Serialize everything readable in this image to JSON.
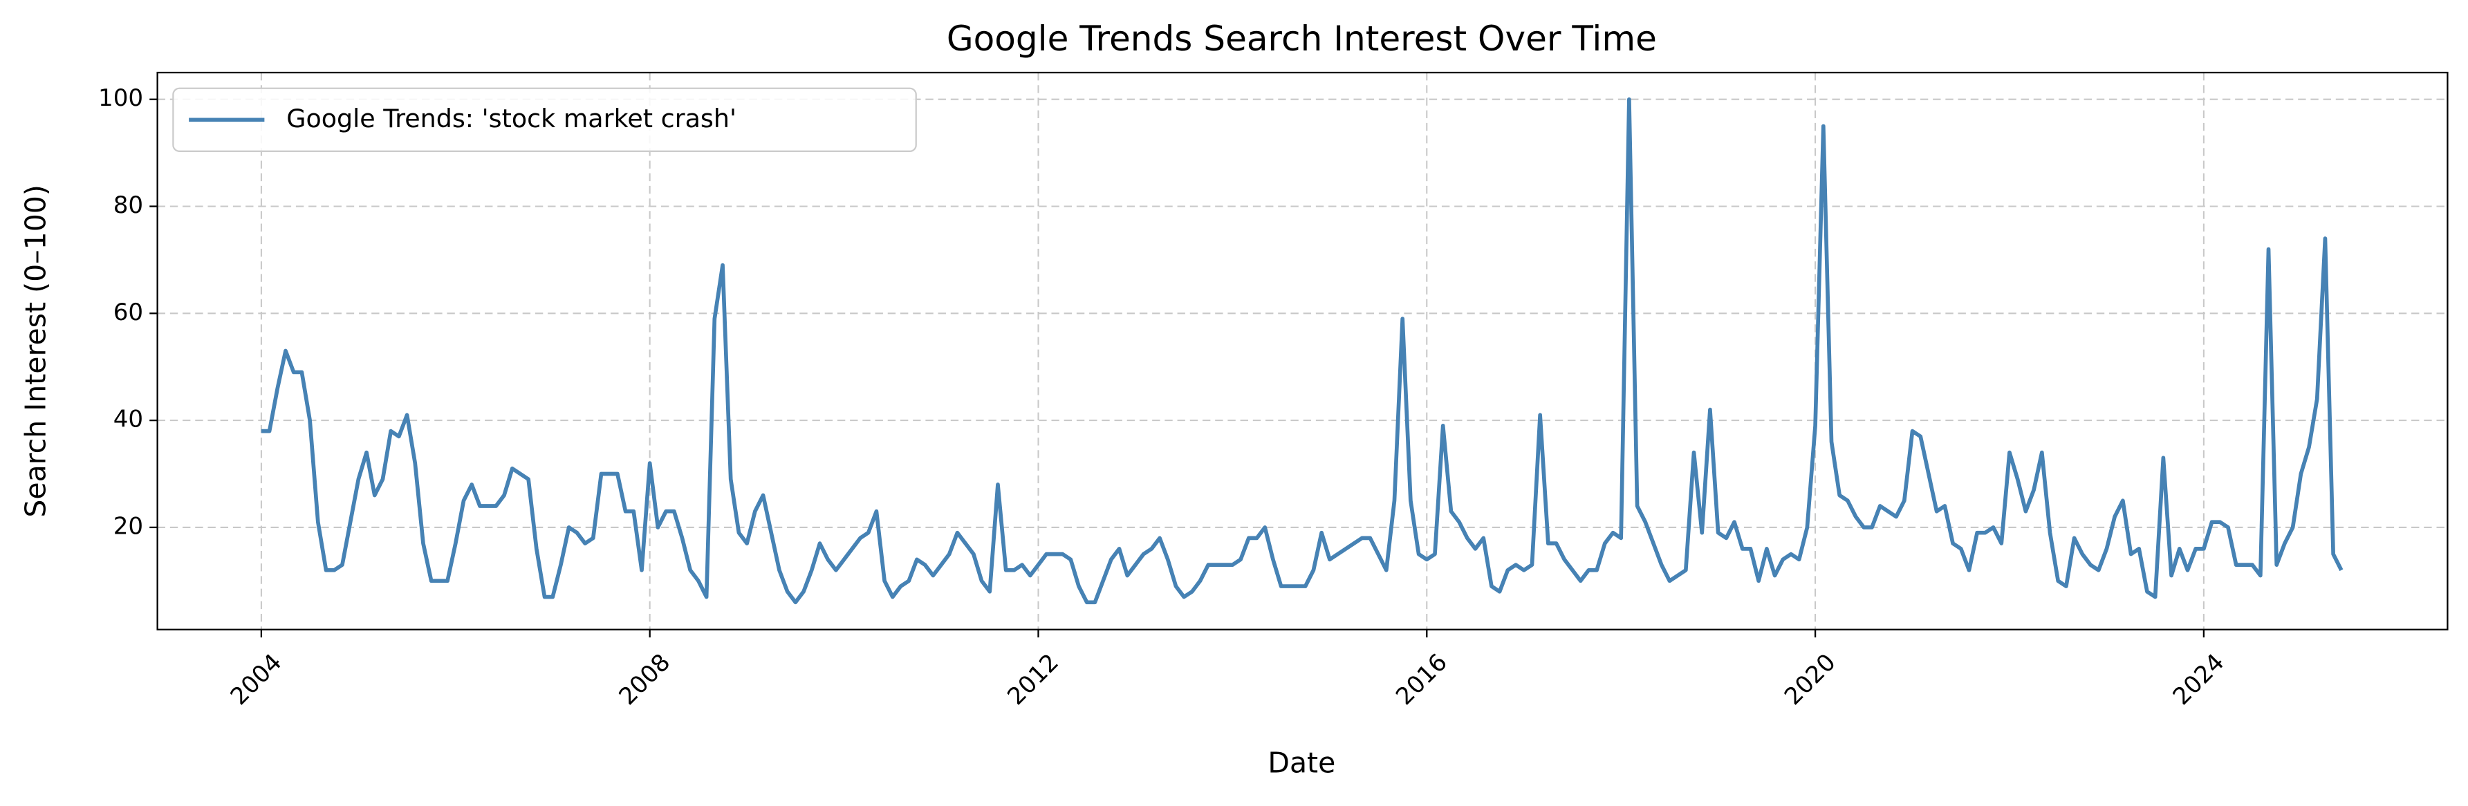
{
  "chart_data": {
    "type": "line",
    "title": "Google Trends Search Interest Over Time",
    "xlabel": "Date",
    "ylabel": "Search Interest (0–100)",
    "legend": "upper left",
    "grid": true,
    "xlim": [
      2002.93,
      2026.51
    ],
    "xticks": [
      2004,
      2008,
      2012,
      2016,
      2020,
      2024
    ],
    "ylim": [
      0.9,
      105
    ],
    "yticks": [
      20,
      40,
      60,
      80,
      100
    ],
    "x": [
      "2004-01",
      "2004-02",
      "2004-03",
      "2004-04",
      "2004-05",
      "2004-06",
      "2004-07",
      "2004-08",
      "2004-09",
      "2004-10",
      "2004-11",
      "2004-12",
      "2005-01",
      "2005-02",
      "2005-03",
      "2005-04",
      "2005-05",
      "2005-06",
      "2005-07",
      "2005-08",
      "2005-09",
      "2005-10",
      "2005-11",
      "2005-12",
      "2006-01",
      "2006-02",
      "2006-03",
      "2006-04",
      "2006-05",
      "2006-06",
      "2006-07",
      "2006-08",
      "2006-09",
      "2006-10",
      "2006-11",
      "2006-12",
      "2007-01",
      "2007-02",
      "2007-03",
      "2007-04",
      "2007-05",
      "2007-06",
      "2007-07",
      "2007-08",
      "2007-09",
      "2007-10",
      "2007-11",
      "2007-12",
      "2008-01",
      "2008-02",
      "2008-03",
      "2008-04",
      "2008-05",
      "2008-06",
      "2008-07",
      "2008-08",
      "2008-09",
      "2008-10",
      "2008-11",
      "2008-12",
      "2009-01",
      "2009-02",
      "2009-03",
      "2009-04",
      "2009-05",
      "2009-06",
      "2009-07",
      "2009-08",
      "2009-09",
      "2009-10",
      "2009-11",
      "2009-12",
      "2010-01",
      "2010-02",
      "2010-03",
      "2010-04",
      "2010-05",
      "2010-06",
      "2010-07",
      "2010-08",
      "2010-09",
      "2010-10",
      "2010-11",
      "2010-12",
      "2011-01",
      "2011-02",
      "2011-03",
      "2011-04",
      "2011-05",
      "2011-06",
      "2011-07",
      "2011-08",
      "2011-09",
      "2011-10",
      "2011-11",
      "2011-12",
      "2012-01",
      "2012-02",
      "2012-03",
      "2012-04",
      "2012-05",
      "2012-06",
      "2012-07",
      "2012-08",
      "2012-09",
      "2012-10",
      "2012-11",
      "2012-12",
      "2013-01",
      "2013-02",
      "2013-03",
      "2013-04",
      "2013-05",
      "2013-06",
      "2013-07",
      "2013-08",
      "2013-09",
      "2013-10",
      "2013-11",
      "2013-12",
      "2014-01",
      "2014-02",
      "2014-03",
      "2014-04",
      "2014-05",
      "2014-06",
      "2014-07",
      "2014-08",
      "2014-09",
      "2014-10",
      "2014-11",
      "2014-12",
      "2015-01",
      "2015-02",
      "2015-03",
      "2015-04",
      "2015-05",
      "2015-06",
      "2015-07",
      "2015-08",
      "2015-09",
      "2015-10",
      "2015-11",
      "2015-12",
      "2016-01",
      "2016-02",
      "2016-03",
      "2016-04",
      "2016-05",
      "2016-06",
      "2016-07",
      "2016-08",
      "2016-09",
      "2016-10",
      "2016-11",
      "2016-12",
      "2017-01",
      "2017-02",
      "2017-03",
      "2017-04",
      "2017-05",
      "2017-06",
      "2017-07",
      "2017-08",
      "2017-09",
      "2017-10",
      "2017-11",
      "2017-12",
      "2018-01",
      "2018-02",
      "2018-03",
      "2018-04",
      "2018-05",
      "2018-06",
      "2018-07",
      "2018-08",
      "2018-09",
      "2018-10",
      "2018-11",
      "2018-12",
      "2019-01",
      "2019-02",
      "2019-03",
      "2019-04",
      "2019-05",
      "2019-06",
      "2019-07",
      "2019-08",
      "2019-09",
      "2019-10",
      "2019-11",
      "2019-12",
      "2020-01",
      "2020-02",
      "2020-03",
      "2020-04",
      "2020-05",
      "2020-06",
      "2020-07",
      "2020-08",
      "2020-09",
      "2020-10",
      "2020-11",
      "2020-12",
      "2021-01",
      "2021-02",
      "2021-03",
      "2021-04",
      "2021-05",
      "2021-06",
      "2021-07",
      "2021-08",
      "2021-09",
      "2021-10",
      "2021-11",
      "2021-12",
      "2022-01",
      "2022-02",
      "2022-03",
      "2022-04",
      "2022-05",
      "2022-06",
      "2022-07",
      "2022-08",
      "2022-09",
      "2022-10",
      "2022-11",
      "2022-12",
      "2023-01",
      "2023-02",
      "2023-03",
      "2023-04",
      "2023-05",
      "2023-06",
      "2023-07",
      "2023-08",
      "2023-09",
      "2023-10",
      "2023-11",
      "2023-12",
      "2024-01",
      "2024-02",
      "2024-03",
      "2024-04",
      "2024-05",
      "2024-06",
      "2024-07",
      "2024-08",
      "2024-09",
      "2024-10",
      "2024-11",
      "2024-12",
      "2025-01",
      "2025-02",
      "2025-03",
      "2025-04",
      "2025-05",
      "2025-06"
    ],
    "series": [
      {
        "name": "Google Trends: 'stock market crash'",
        "color": "#4682b4",
        "values": [
          38,
          38,
          46,
          53,
          49,
          49,
          40,
          21,
          12,
          12,
          13,
          21,
          29,
          34,
          26,
          29,
          38,
          37,
          41,
          32,
          17,
          10,
          10,
          10,
          17,
          25,
          28,
          24,
          24,
          24,
          26,
          31,
          30,
          29,
          16,
          7,
          7,
          13,
          20,
          19,
          17,
          18,
          30,
          30,
          30,
          23,
          23,
          12,
          32,
          20,
          23,
          23,
          18,
          12,
          10,
          7,
          59,
          69,
          29,
          19,
          17,
          23,
          26,
          19,
          12,
          8,
          6,
          8,
          12,
          17,
          14,
          12,
          14,
          16,
          18,
          19,
          23,
          10,
          7,
          9,
          10,
          14,
          13,
          11,
          13,
          15,
          19,
          17,
          15,
          10,
          8,
          28,
          12,
          12,
          13,
          11,
          13,
          15,
          15,
          15,
          14,
          9,
          6,
          6,
          10,
          14,
          16,
          11,
          13,
          15,
          16,
          18,
          14,
          9,
          7,
          8,
          10,
          13,
          13,
          13,
          13,
          14,
          18,
          18,
          20,
          14,
          9,
          9,
          9,
          9,
          12,
          19,
          14,
          15,
          16,
          17,
          18,
          18,
          15,
          12,
          25,
          59,
          25,
          15,
          14,
          15,
          39,
          23,
          21,
          18,
          16,
          18,
          9,
          8,
          12,
          13,
          12,
          13,
          41,
          17,
          17,
          14,
          12,
          10,
          12,
          12,
          17,
          19,
          18,
          100,
          24,
          21,
          17,
          13,
          10,
          11,
          12,
          34,
          19,
          42,
          19,
          18,
          21,
          16,
          16,
          10,
          16,
          11,
          14,
          15,
          14,
          20,
          39,
          95,
          36,
          26,
          25,
          22,
          20,
          20,
          24,
          23,
          22,
          25,
          38,
          37,
          30,
          23,
          24,
          17,
          16,
          12,
          19,
          19,
          20,
          17,
          34,
          29,
          23,
          27,
          34,
          19,
          10,
          9,
          18,
          15,
          13,
          12,
          16,
          22,
          25,
          15,
          16,
          8,
          7,
          33,
          11,
          16,
          12,
          16,
          16,
          21,
          21,
          20,
          13,
          13,
          13,
          11,
          72,
          13,
          17,
          20,
          30,
          35,
          44,
          74,
          15,
          12
        ]
      }
    ]
  }
}
